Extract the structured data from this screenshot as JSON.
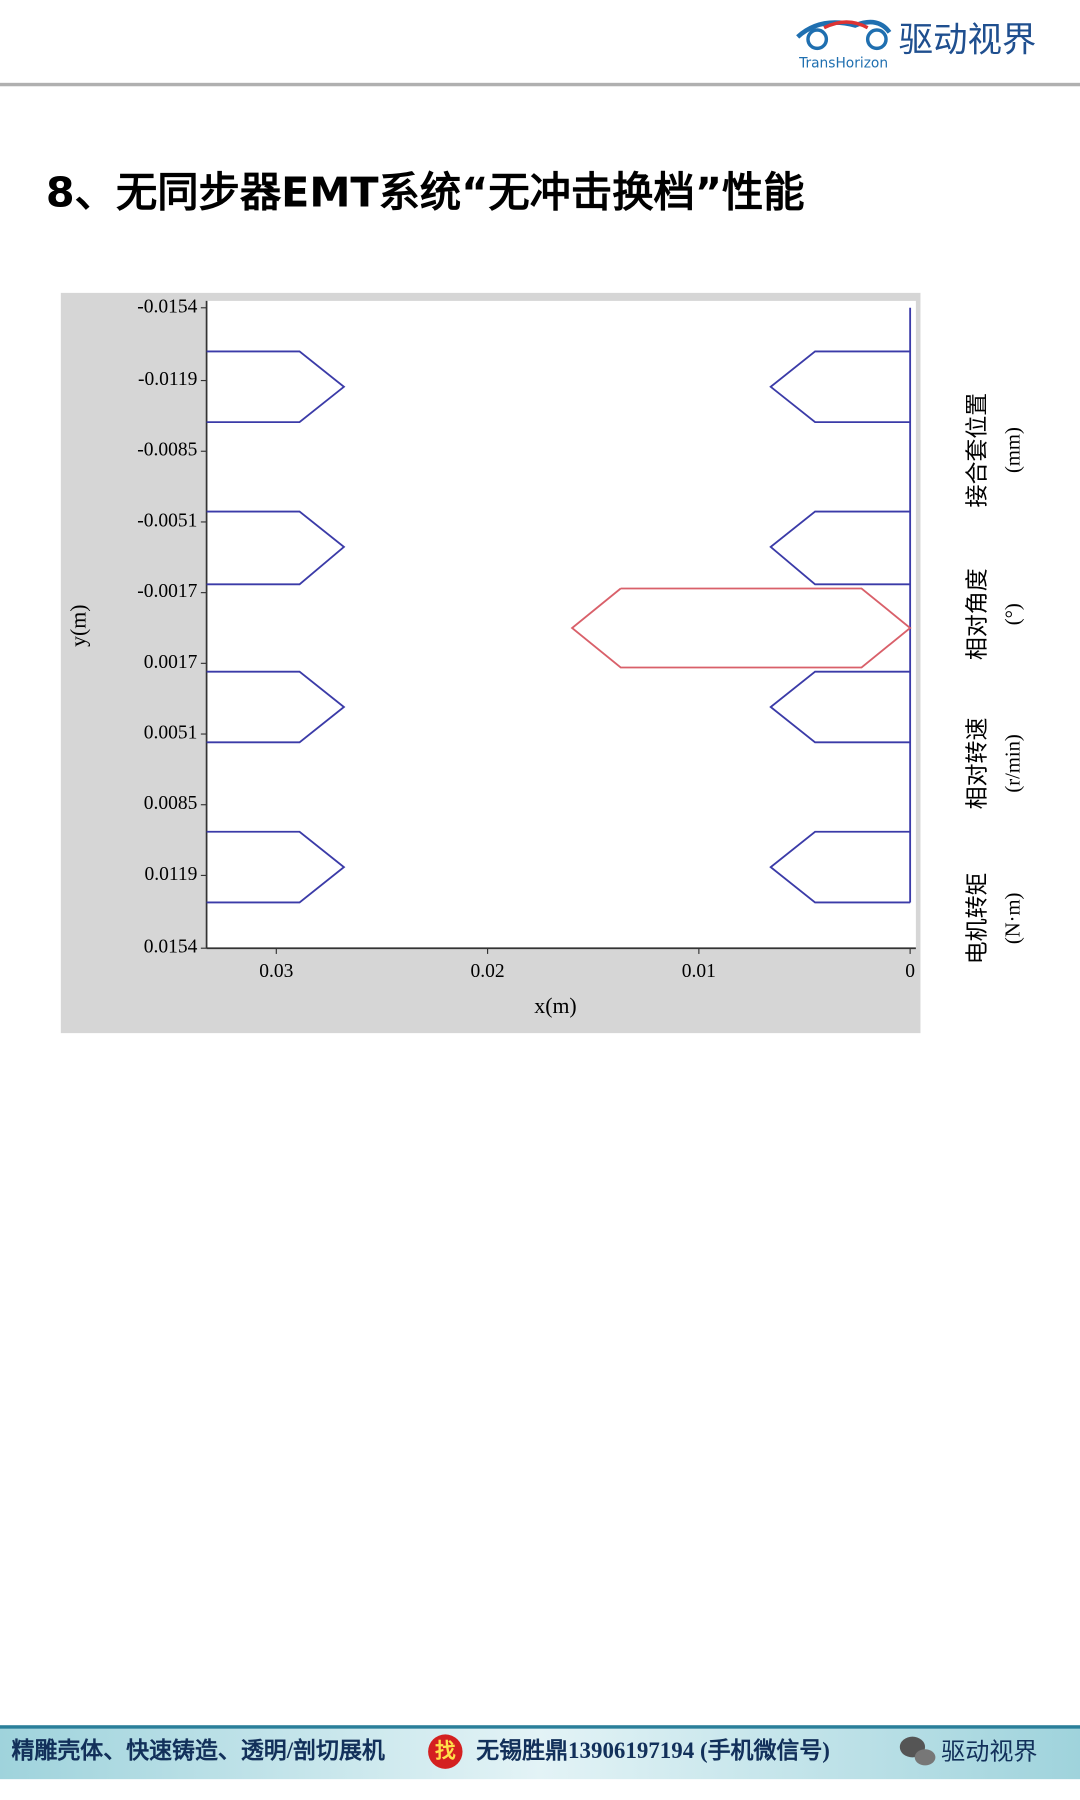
{
  "header": {
    "logo_text": "TransHorizon",
    "brand": "驱动视界"
  },
  "title": "8、无同步器EMT系统“无冲击换档”性能",
  "chart_data": {
    "type": "line",
    "x_label": "x(m)",
    "y_label": "y(m)",
    "xlim": [
      0.0333,
      0
    ],
    "ylim": [
      -0.0154,
      0.0154
    ],
    "xticks": [
      0.03,
      0.02,
      0.01,
      0
    ],
    "yticks": [
      -0.0154,
      -0.0119,
      -0.0085,
      -0.0051,
      -0.0017,
      0.0017,
      0.0051,
      0.0085,
      0.0119,
      0.0154
    ],
    "series": [
      {
        "color": "#3b3ba8",
        "x": [
          0.0333,
          0.0289,
          0.0268,
          0.0289,
          0.0333
        ],
        "values": [
          -0.0133,
          -0.0133,
          -0.0116,
          -0.0099,
          -0.0099
        ]
      },
      {
        "color": "#3b3ba8",
        "x": [
          0.0333,
          0.0289,
          0.0268,
          0.0289,
          0.0333
        ],
        "values": [
          -0.0056,
          -0.0056,
          -0.0039,
          -0.0021,
          -0.0021
        ]
      },
      {
        "color": "#3b3ba8",
        "x": [
          0.0333,
          0.0289,
          0.0268,
          0.0289,
          0.0333
        ],
        "values": [
          0.0021,
          0.0021,
          0.0038,
          0.0055,
          0.0055
        ]
      },
      {
        "color": "#3b3ba8",
        "x": [
          0.0333,
          0.0289,
          0.0268,
          0.0289,
          0.0333
        ],
        "values": [
          0.0098,
          0.0098,
          0.0115,
          0.0132,
          0.0132
        ]
      },
      {
        "color": "#3b3ba8",
        "x": [
          0,
          0
        ],
        "values": [
          -0.0154,
          0.0132
        ]
      },
      {
        "color": "#3b3ba8",
        "x": [
          0,
          0.0045,
          0.0066,
          0.0045,
          0
        ],
        "values": [
          -0.0133,
          -0.0133,
          -0.0116,
          -0.0099,
          -0.0099
        ]
      },
      {
        "color": "#3b3ba8",
        "x": [
          0,
          0.0045,
          0.0066,
          0.0045,
          0
        ],
        "values": [
          -0.0056,
          -0.0056,
          -0.0039,
          -0.0021,
          -0.0021
        ]
      },
      {
        "color": "#3b3ba8",
        "x": [
          0,
          0.0045,
          0.0066,
          0.0045,
          0
        ],
        "values": [
          0.0021,
          0.0021,
          0.0038,
          0.0055,
          0.0055
        ]
      },
      {
        "color": "#3b3ba8",
        "x": [
          0,
          0.0045,
          0.0066,
          0.0045,
          0
        ],
        "values": [
          0.0098,
          0.0098,
          0.0115,
          0.0132,
          0.0132
        ]
      },
      {
        "color": "#d9606a",
        "x": [
          0.0137,
          0.0023,
          0,
          0.0023,
          0.0137,
          0.016,
          0.0137
        ],
        "values": [
          -0.0019,
          -0.0019,
          0,
          0.0019,
          0.0019,
          0,
          -0.0019
        ]
      }
    ]
  },
  "side_labels": [
    {
      "text": "接合套位置",
      "unit": "(mm)"
    },
    {
      "text": "相对角度",
      "unit": "(°)"
    },
    {
      "text": "相对转速",
      "unit": "(r/min)"
    },
    {
      "text": "电机转矩",
      "unit": "(N·m)"
    }
  ],
  "footer": {
    "ad": "精雕壳体、快速铸造、透明/剖切展机",
    "find": "找",
    "contact": "无锡胜鼎13906197194 (手机微信号)",
    "brand": "驱动视界"
  }
}
